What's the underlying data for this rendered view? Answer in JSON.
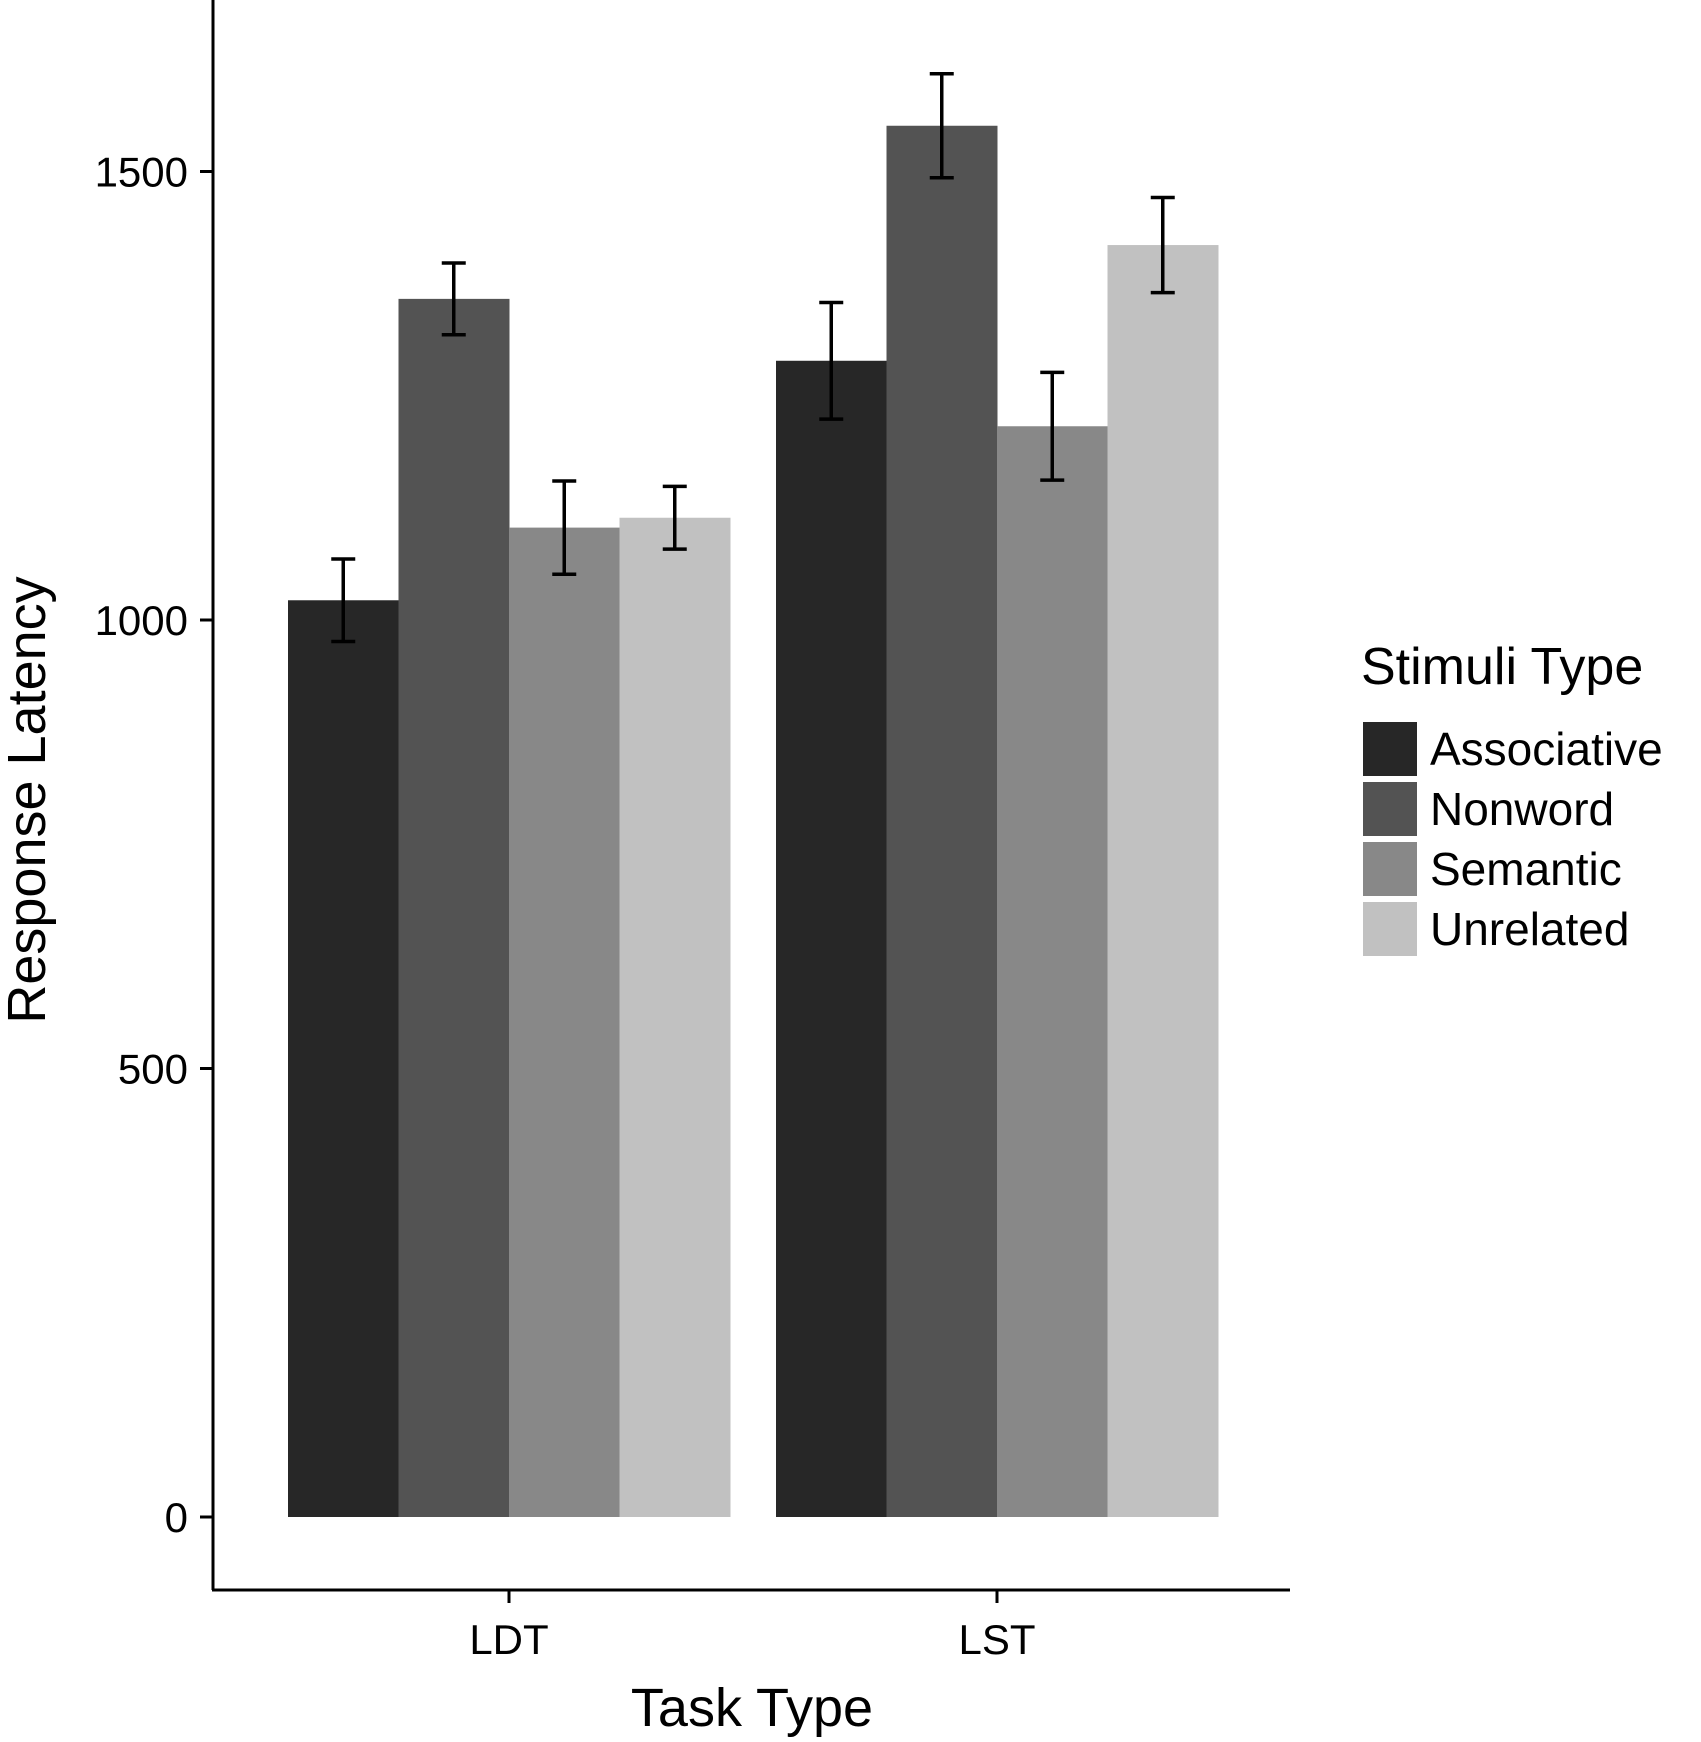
{
  "chart_data": {
    "type": "bar",
    "xlabel": "Task Type",
    "ylabel": "Response Latency",
    "categories": [
      "LDT",
      "LST"
    ],
    "yticks": [
      0,
      500,
      1000,
      1500
    ],
    "ylim": [
      -80,
      1880
    ],
    "grid": false,
    "legend": {
      "title": "Stimuli Type",
      "position": "right"
    },
    "series": [
      {
        "name": "Associative",
        "color": "#272727",
        "values": [
          1022,
          1289
        ],
        "error": [
          46,
          65
        ]
      },
      {
        "name": "Nonword",
        "color": "#535353",
        "values": [
          1358,
          1551
        ],
        "error": [
          40,
          58
        ]
      },
      {
        "name": "Semantic",
        "color": "#888888",
        "values": [
          1103,
          1216
        ],
        "error": [
          52,
          60
        ]
      },
      {
        "name": "Unrelated",
        "color": "#c1c1c1",
        "values": [
          1114,
          1418
        ],
        "error": [
          35,
          53
        ]
      }
    ]
  }
}
